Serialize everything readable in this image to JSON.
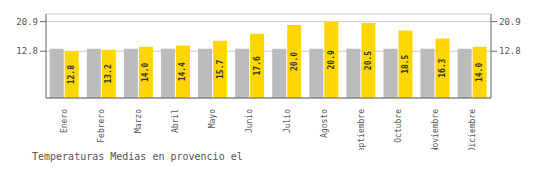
{
  "chart_data": {
    "type": "bar",
    "title": "Temperaturas Medias en provencio el",
    "categories": [
      "Enero",
      "Febrero",
      "Marzo",
      "Abril",
      "Mayo",
      "Junio",
      "Julio",
      "Agosto",
      "Septiembre",
      "Octubre",
      "Noviembre",
      "Diciembre"
    ],
    "series": [
      {
        "color": "#BBBBBB",
        "values": [
          13.5,
          13.5,
          13.5,
          13.5,
          13.5,
          13.5,
          13.5,
          13.5,
          13.5,
          13.5,
          13.5,
          13.5
        ]
      },
      {
        "color": "#FFD700",
        "values": [
          12.8,
          13.2,
          14.0,
          14.4,
          15.7,
          17.6,
          20.0,
          20.9,
          20.5,
          18.5,
          16.3,
          14.0
        ],
        "value_labels": [
          "12.8",
          "13.2",
          "14.0",
          "14.4",
          "15.7",
          "17.6",
          "20.0",
          "20.9",
          "20.5",
          "18.5",
          "16.3",
          "14.0"
        ],
        "data_labels": true
      }
    ],
    "ylim": [
      0,
      22.99
    ],
    "yticks": [
      12.8,
      20.9
    ],
    "y2lim": [
      0,
      22.99
    ],
    "y2ticks": [
      12.8,
      20.9
    ],
    "grid": true
  }
}
